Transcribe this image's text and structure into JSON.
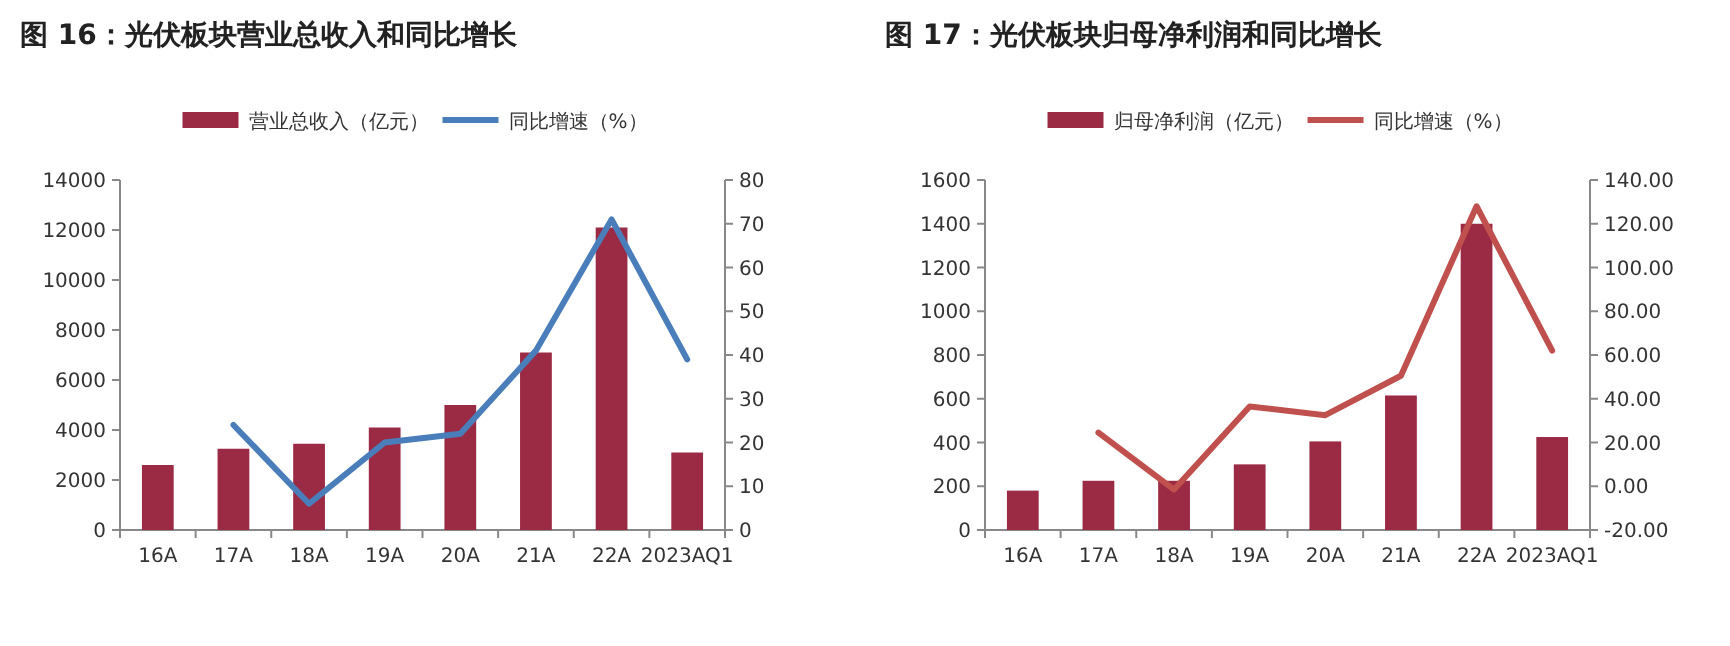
{
  "chart_data": [
    {
      "type": "bar",
      "title": "图 16：光伏板块营业总收入和同比增长",
      "categories": [
        "16A",
        "17A",
        "18A",
        "19A",
        "20A",
        "21A",
        "22A",
        "2023AQ1"
      ],
      "series": [
        {
          "name": "营业总收入（亿元）",
          "color": "#9b2a45",
          "values": [
            2600,
            3250,
            3450,
            4100,
            5000,
            7100,
            12100,
            3100
          ]
        },
        {
          "name": "同比增速（%）",
          "type": "line",
          "axis": "y2",
          "color": "#4a7ebb",
          "values": [
            null,
            24,
            6,
            20,
            22,
            41,
            71,
            39
          ]
        }
      ],
      "ylim": [
        0,
        14000
      ],
      "yticks": [
        0,
        2000,
        4000,
        6000,
        8000,
        10000,
        12000,
        14000
      ],
      "y2lim": [
        0,
        80
      ],
      "y2ticks": [
        0,
        10,
        20,
        30,
        40,
        50,
        60,
        70,
        80
      ],
      "legend": "top"
    },
    {
      "type": "bar",
      "title": "图 17：光伏板块归母净利润和同比增长",
      "categories": [
        "16A",
        "17A",
        "18A",
        "19A",
        "20A",
        "21A",
        "22A",
        "2023AQ1"
      ],
      "series": [
        {
          "name": "归母净利润（亿元）",
          "color": "#9b2a45",
          "values": [
            180,
            225,
            225,
            300,
            405,
            615,
            1400,
            425
          ]
        },
        {
          "name": "同比增速（%）",
          "type": "line",
          "axis": "y2",
          "color": "#c0504d",
          "values": [
            null,
            24.5,
            -1.5,
            36.5,
            32.5,
            50.5,
            128,
            62
          ]
        }
      ],
      "ylim": [
        0,
        1600
      ],
      "yticks": [
        0,
        200,
        400,
        600,
        800,
        1000,
        1200,
        1400,
        1600
      ],
      "y2lim": [
        -20,
        140
      ],
      "y2ticks": [
        {
          "value": -20,
          "label": "-20.00"
        },
        {
          "value": 0,
          "label": "0.00"
        },
        {
          "value": 20,
          "label": "20.00"
        },
        {
          "value": 40,
          "label": "40.00"
        },
        {
          "value": 60,
          "label": "60.00"
        },
        {
          "value": 80,
          "label": "80.00"
        },
        {
          "value": 100,
          "label": "100.00"
        },
        {
          "value": 120,
          "label": "120.00"
        },
        {
          "value": 140,
          "label": "140.00"
        }
      ],
      "legend": "top"
    }
  ]
}
